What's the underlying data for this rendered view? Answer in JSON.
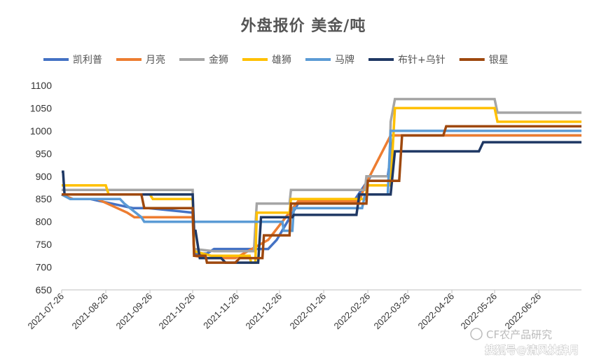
{
  "chart_data": {
    "type": "line",
    "title": "外盘报价 美金/吨",
    "ylim": [
      650,
      1100
    ],
    "yticks": [
      650,
      700,
      750,
      800,
      850,
      900,
      950,
      1000,
      1050,
      1100
    ],
    "xlim": [
      "2021-07-26",
      "2022-07-26"
    ],
    "xticks": [
      "2021-07-26",
      "2021-08-26",
      "2021-09-26",
      "2021-10-26",
      "2021-11-26",
      "2021-12-26",
      "2022-01-26",
      "2022-02-26",
      "2022-03-26",
      "2022-04-26",
      "2022-05-26",
      "2022-06-26"
    ],
    "grid": false,
    "legend": "top",
    "step": true,
    "series": [
      {
        "name": "凯利普",
        "color": "#4472C4",
        "points": [
          [
            "2021-07-26",
            860
          ],
          [
            "2021-08-02",
            850
          ],
          [
            "2021-08-15",
            850
          ],
          [
            "2021-09-14",
            830
          ],
          [
            "2021-09-25",
            830
          ],
          [
            "2021-10-26",
            820
          ],
          [
            "2021-10-27",
            730
          ],
          [
            "2021-11-05",
            730
          ],
          [
            "2021-11-10",
            740
          ],
          [
            "2021-12-18",
            740
          ],
          [
            "2021-12-24",
            760
          ],
          [
            "2022-01-08",
            840
          ],
          [
            "2022-02-15",
            840
          ],
          [
            "2022-02-28",
            900
          ],
          [
            "2022-03-12",
            900
          ],
          [
            "2022-03-16",
            990
          ],
          [
            "2022-05-05",
            990
          ],
          [
            "2022-07-26",
            990
          ]
        ]
      },
      {
        "name": "月亮",
        "color": "#ED7D31",
        "points": [
          [
            "2021-07-26",
            860
          ],
          [
            "2021-08-03",
            850
          ],
          [
            "2021-08-20",
            850
          ],
          [
            "2021-09-10",
            820
          ],
          [
            "2021-09-15",
            810
          ],
          [
            "2021-10-26",
            810
          ],
          [
            "2021-10-27",
            725
          ],
          [
            "2021-11-05",
            720
          ],
          [
            "2021-11-25",
            720
          ],
          [
            "2021-12-18",
            760
          ],
          [
            "2022-01-08",
            845
          ],
          [
            "2022-02-20",
            845
          ],
          [
            "2022-02-24",
            880
          ],
          [
            "2022-03-14",
            990
          ],
          [
            "2022-07-26",
            990
          ]
        ]
      },
      {
        "name": "金狮",
        "color": "#A5A5A5",
        "points": [
          [
            "2021-07-26",
            870
          ],
          [
            "2021-08-26",
            870
          ],
          [
            "2021-10-26",
            870
          ],
          [
            "2021-10-27",
            740
          ],
          [
            "2021-11-10",
            735
          ],
          [
            "2021-12-08",
            735
          ],
          [
            "2021-12-10",
            840
          ],
          [
            "2022-01-02",
            840
          ],
          [
            "2022-01-03",
            870
          ],
          [
            "2022-02-24",
            870
          ],
          [
            "2022-02-25",
            900
          ],
          [
            "2022-03-13",
            900
          ],
          [
            "2022-03-14",
            1020
          ],
          [
            "2022-03-17",
            1070
          ],
          [
            "2022-05-26",
            1070
          ],
          [
            "2022-05-28",
            1040
          ],
          [
            "2022-07-26",
            1040
          ]
        ]
      },
      {
        "name": "雄狮",
        "color": "#FFC000",
        "points": [
          [
            "2021-07-26",
            880
          ],
          [
            "2021-08-26",
            880
          ],
          [
            "2021-08-28",
            860
          ],
          [
            "2021-09-26",
            860
          ],
          [
            "2021-09-28",
            850
          ],
          [
            "2021-10-26",
            850
          ],
          [
            "2021-10-27",
            735
          ],
          [
            "2021-11-08",
            725
          ],
          [
            "2021-12-05",
            725
          ],
          [
            "2021-12-06",
            710
          ],
          [
            "2021-12-09",
            710
          ],
          [
            "2021-12-10",
            820
          ],
          [
            "2022-01-02",
            820
          ],
          [
            "2022-01-03",
            850
          ],
          [
            "2022-02-24",
            850
          ],
          [
            "2022-02-26",
            880
          ],
          [
            "2022-03-14",
            880
          ],
          [
            "2022-03-17",
            1050
          ],
          [
            "2022-05-26",
            1050
          ],
          [
            "2022-05-28",
            1020
          ],
          [
            "2022-07-26",
            1020
          ]
        ]
      },
      {
        "name": "马牌",
        "color": "#5B9BD5",
        "points": [
          [
            "2021-07-26",
            860
          ],
          [
            "2021-08-01",
            850
          ],
          [
            "2021-09-05",
            850
          ],
          [
            "2021-09-08",
            840
          ],
          [
            "2021-09-20",
            810
          ],
          [
            "2021-09-22",
            800
          ],
          [
            "2021-12-28",
            800
          ],
          [
            "2021-12-29",
            780
          ],
          [
            "2022-01-04",
            780
          ],
          [
            "2022-01-05",
            830
          ],
          [
            "2022-02-22",
            830
          ],
          [
            "2022-02-24",
            860
          ],
          [
            "2022-03-12",
            860
          ],
          [
            "2022-03-14",
            1000
          ],
          [
            "2022-07-26",
            1000
          ]
        ]
      },
      {
        "name": "布针+乌针",
        "color": "#1F3864",
        "points": [
          [
            "2021-07-26",
            910
          ],
          [
            "2021-07-27",
            910
          ],
          [
            "2021-07-28",
            860
          ],
          [
            "2021-10-26",
            860
          ],
          [
            "2021-10-27",
            780
          ],
          [
            "2021-10-28",
            780
          ],
          [
            "2021-10-31",
            720
          ],
          [
            "2021-11-15",
            720
          ],
          [
            "2021-11-18",
            710
          ],
          [
            "2021-12-11",
            710
          ],
          [
            "2021-12-13",
            810
          ],
          [
            "2022-01-04",
            810
          ],
          [
            "2022-01-05",
            815
          ],
          [
            "2022-02-18",
            815
          ],
          [
            "2022-02-20",
            860
          ],
          [
            "2022-03-14",
            860
          ],
          [
            "2022-03-17",
            955
          ],
          [
            "2022-05-15",
            955
          ],
          [
            "2022-05-18",
            975
          ],
          [
            "2022-07-26",
            975
          ]
        ]
      },
      {
        "name": "银星",
        "color": "#9E480E",
        "points": [
          [
            "2021-07-26",
            860
          ],
          [
            "2021-09-20",
            860
          ],
          [
            "2021-09-22",
            830
          ],
          [
            "2021-10-26",
            830
          ],
          [
            "2021-10-27",
            725
          ],
          [
            "2021-11-04",
            725
          ],
          [
            "2021-11-05",
            710
          ],
          [
            "2021-11-25",
            710
          ],
          [
            "2021-11-28",
            720
          ],
          [
            "2021-12-14",
            720
          ],
          [
            "2021-12-15",
            770
          ],
          [
            "2022-01-02",
            770
          ],
          [
            "2022-01-03",
            840
          ],
          [
            "2022-02-25",
            840
          ],
          [
            "2022-02-26",
            890
          ],
          [
            "2022-03-20",
            890
          ],
          [
            "2022-03-22",
            990
          ],
          [
            "2022-04-20",
            990
          ],
          [
            "2022-04-22",
            1010
          ],
          [
            "2022-07-26",
            1010
          ]
        ]
      }
    ]
  },
  "watermark": {
    "line1": "CF农产品研究",
    "line2": "搜狐号@清风扶辞月"
  }
}
